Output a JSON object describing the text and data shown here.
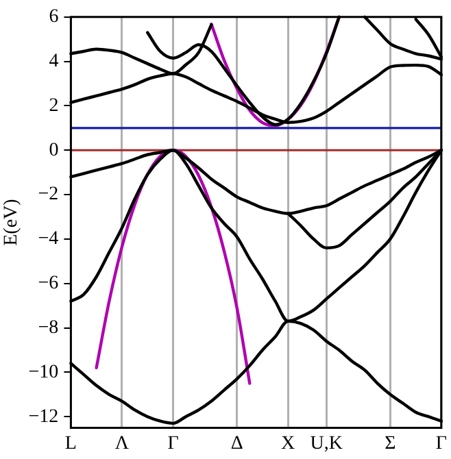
{
  "chart_data": {
    "type": "line",
    "ylabel": "E(eV)",
    "ylim": [
      -12.5,
      6
    ],
    "categories": [
      "L",
      null,
      null,
      null,
      "Λ",
      null,
      null,
      null,
      "Γ",
      null,
      null,
      null,
      null,
      "Δ",
      null,
      null,
      null,
      "X",
      null,
      null,
      "U,K",
      null,
      null,
      null,
      null,
      "Σ",
      null,
      null,
      null,
      "Γ"
    ],
    "yticks": [
      -12,
      -10,
      -8,
      -6,
      -4,
      -2,
      0,
      2,
      4,
      6
    ],
    "grid": "x",
    "legend": false,
    "marker": "none",
    "line_style": "solid",
    "ref_lines": [
      {
        "axis": "y",
        "value": 0,
        "color": "#a52a2a"
      },
      {
        "axis": "y",
        "value": 1.0,
        "color": "#1a1aa6"
      }
    ],
    "series": [
      {
        "color": "#000000",
        "values": [
          -9.6,
          -10.1,
          -10.6,
          -11.0,
          -11.3,
          -11.7,
          -12.0,
          -12.2,
          -12.3,
          -12.0,
          -11.7,
          -11.3,
          -10.8,
          -10.3,
          -9.7,
          -9.0,
          -8.4,
          -7.7,
          -7.8,
          -8.1,
          -8.6,
          -9.0,
          -9.5,
          -9.9,
          -10.5,
          -11.0,
          -11.4,
          -11.8,
          -12.0,
          -12.2
        ]
      },
      {
        "color": "#000000",
        "values": [
          -6.8,
          -6.5,
          -5.7,
          -4.6,
          -3.5,
          -2.2,
          -1.1,
          -0.4,
          0,
          -0.6,
          -1.6,
          -2.6,
          -3.3,
          -3.9,
          -4.9,
          -5.8,
          -6.8,
          -7.7,
          -7.5,
          -7.2,
          -6.7,
          -6.2,
          -5.7,
          -5.2,
          -4.6,
          -4.0,
          -3.0,
          -1.9,
          -0.9,
          0
        ]
      },
      {
        "color": "#000000",
        "values": [
          -1.2,
          -1.05,
          -0.9,
          -0.75,
          -0.6,
          -0.4,
          -0.2,
          -0.1,
          0,
          -0.35,
          -0.8,
          -1.3,
          -1.7,
          -2.1,
          -2.35,
          -2.6,
          -2.75,
          -2.85,
          -2.75,
          -2.6,
          -2.5,
          -2.2,
          -1.9,
          -1.6,
          -1.35,
          -1.1,
          -0.85,
          -0.55,
          -0.3,
          0
        ]
      },
      {
        "color": "#000000",
        "values": [
          null,
          null,
          null,
          null,
          null,
          null,
          null,
          null,
          null,
          null,
          null,
          null,
          null,
          null,
          null,
          null,
          null,
          -2.85,
          -3.4,
          -4.0,
          -4.4,
          -4.3,
          -3.8,
          -3.3,
          -2.8,
          -2.3,
          -1.7,
          -1.2,
          -0.6,
          0
        ]
      },
      {
        "color": "#000000",
        "values": [
          2.15,
          2.3,
          2.45,
          2.6,
          2.75,
          2.95,
          3.2,
          3.35,
          3.45,
          3.3,
          3.0,
          2.7,
          2.45,
          2.2,
          1.9,
          1.6,
          1.4,
          1.25,
          1.3,
          1.45,
          1.75,
          2.15,
          2.55,
          2.95,
          3.35,
          3.75,
          3.82,
          3.83,
          3.77,
          3.4
        ]
      },
      {
        "color": "#000000",
        "values": [
          4.35,
          4.45,
          4.55,
          4.5,
          4.4,
          4.15,
          3.9,
          3.65,
          3.45,
          3.85,
          4.4,
          5.65,
          null,
          null,
          null,
          null,
          null,
          null,
          null,
          null,
          null,
          null,
          null,
          null,
          null,
          null,
          null,
          null,
          null,
          null
        ]
      },
      {
        "color": "#000000",
        "values": [
          null,
          null,
          null,
          null,
          null,
          null,
          5.3,
          4.45,
          4.15,
          4.4,
          4.75,
          4.45,
          3.7,
          2.9,
          2.15,
          1.5,
          1.15,
          1.4,
          2.1,
          3.1,
          4.35,
          6.0,
          null,
          null,
          null,
          null,
          null,
          null,
          null,
          null
        ]
      },
      {
        "color": "#000000",
        "values": [
          null,
          null,
          null,
          null,
          null,
          null,
          null,
          null,
          null,
          null,
          null,
          null,
          null,
          null,
          null,
          null,
          null,
          null,
          null,
          null,
          null,
          null,
          null,
          6.0,
          5.4,
          4.8,
          4.55,
          4.35,
          4.25,
          4.1
        ]
      },
      {
        "color": "#000000",
        "values": [
          null,
          null,
          null,
          null,
          null,
          null,
          null,
          null,
          null,
          null,
          null,
          null,
          null,
          null,
          null,
          null,
          null,
          null,
          null,
          null,
          null,
          null,
          null,
          null,
          null,
          null,
          null,
          5.9,
          5.2,
          4.2
        ]
      },
      {
        "color": "#b000b0",
        "values": [
          null,
          null,
          null,
          null,
          null,
          null,
          null,
          null,
          null,
          null,
          null,
          5.68,
          4.05,
          2.78,
          1.8,
          1.24,
          1.11,
          1.39,
          2.03,
          3.04,
          4.41,
          6.0,
          null,
          null,
          null,
          null,
          null,
          null,
          null,
          null
        ]
      },
      {
        "color": "#b000b0",
        "values": [
          null,
          null,
          -9.8,
          -6.8,
          -4.35,
          -2.45,
          -1.09,
          -0.27,
          0,
          -0.28,
          -1.14,
          -2.56,
          -4.55,
          -7.1,
          -10.5,
          null,
          null,
          null,
          null,
          null,
          null,
          null,
          null,
          null,
          null,
          null,
          null,
          null,
          null,
          null
        ]
      }
    ]
  }
}
